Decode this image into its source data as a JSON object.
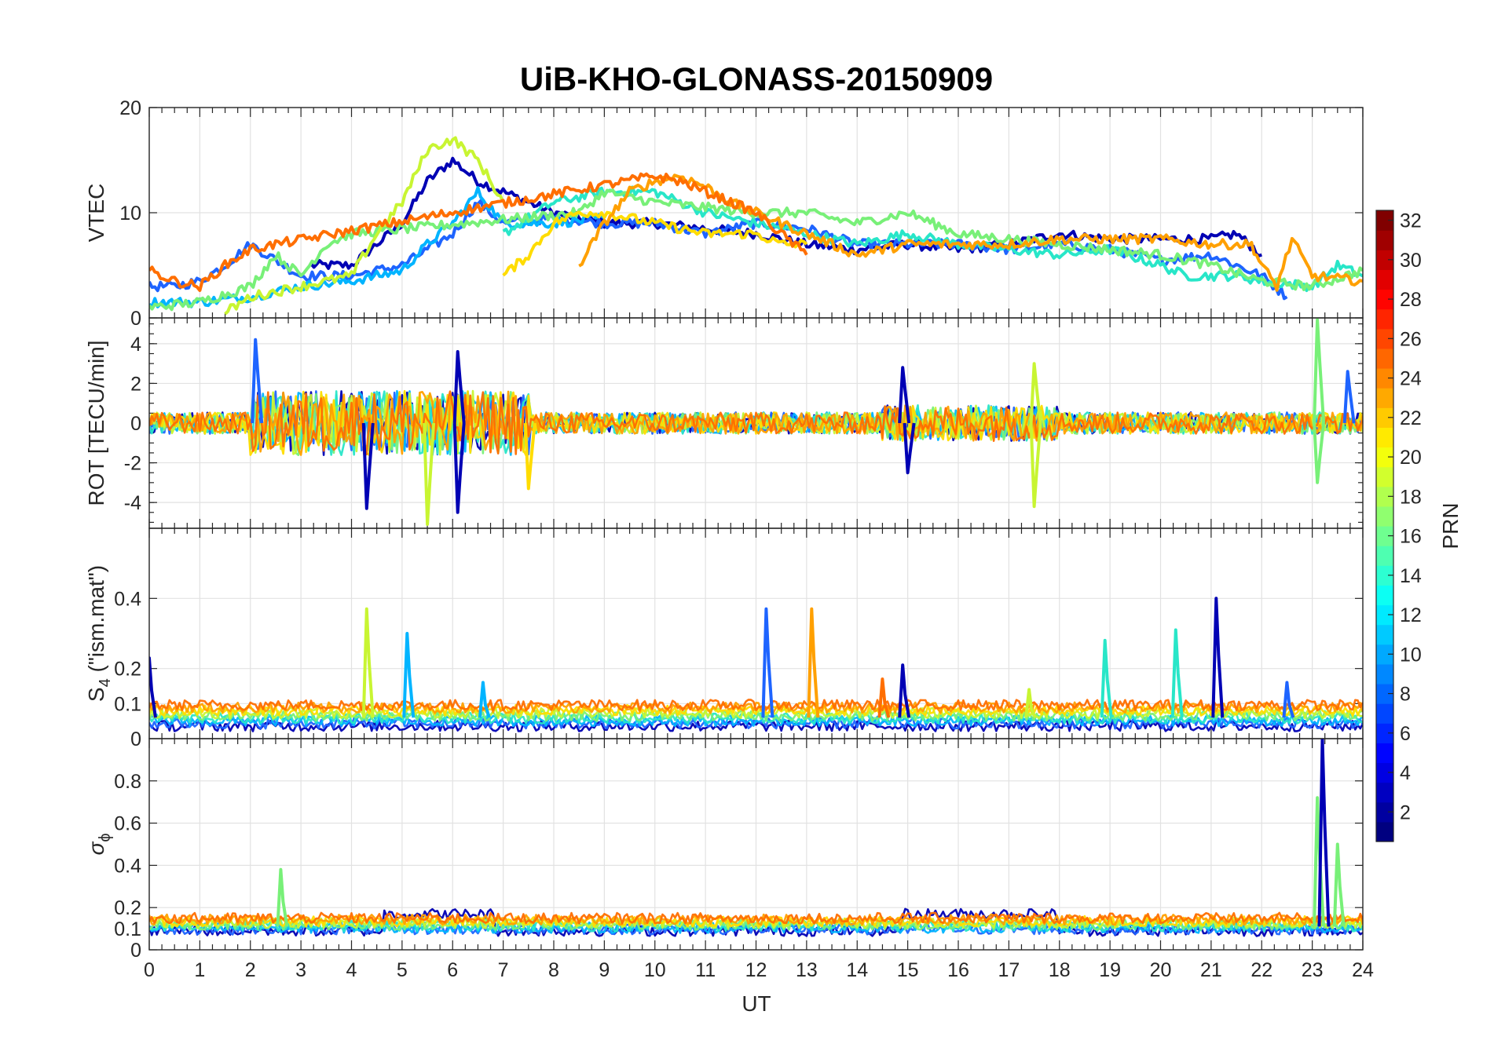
{
  "chart_data": {
    "type": "line",
    "title": "UiB-KHO-GLONASS-20150909",
    "xlabel": "UT",
    "xlim": [
      0,
      24
    ],
    "xticks": [
      "0",
      "1",
      "2",
      "3",
      "4",
      "5",
      "6",
      "7",
      "8",
      "9",
      "10",
      "11",
      "12",
      "13",
      "14",
      "15",
      "16",
      "17",
      "18",
      "19",
      "20",
      "21",
      "22",
      "23",
      "24"
    ],
    "panels": [
      {
        "id": "vtec",
        "ylabel": "VTEC",
        "ylim": [
          0,
          20
        ],
        "yticks": [
          "0",
          "10",
          "20"
        ],
        "series": [
          {
            "name": "PRN 2",
            "color": "#0000b4",
            "x": [
              3.2,
              4.0,
              5.0,
              5.5,
              6.0,
              6.5,
              7.0,
              8.0,
              9.0,
              10.0,
              11.0,
              12.0,
              13.0,
              14.0,
              15.0,
              16.0,
              17.0,
              18.0,
              19.0,
              20.0,
              21.0,
              21.5,
              22.0
            ],
            "y": [
              5,
              5,
              9,
              13,
              15,
              13,
              12,
              10,
              9,
              9,
              8.5,
              8,
              7,
              6.5,
              7,
              6.5,
              7,
              8,
              7.5,
              7.5,
              7.5,
              8,
              6
            ]
          },
          {
            "name": "PRN 6",
            "color": "#1e64ff",
            "x": [
              0,
              0.5,
              1.0,
              1.5,
              2.0,
              2.5,
              3.0,
              4.0,
              5.0,
              6.0,
              6.5,
              7.0,
              8.0,
              9.0,
              10.0,
              11.0,
              12.0,
              13.0,
              14.0,
              15.0,
              16.0,
              17.0,
              18.0,
              19.0,
              20.0,
              21.0,
              22.0,
              22.5
            ],
            "y": [
              3,
              3,
              3.5,
              5,
              7,
              5.5,
              4,
              4,
              5,
              8,
              11,
              9,
              9.5,
              9,
              9,
              8,
              9,
              8.5,
              7,
              7,
              7,
              6.5,
              7,
              6.5,
              5.5,
              6,
              4,
              2
            ],
            "line2": true
          },
          {
            "name": "PRN 10",
            "color": "#00b4ff",
            "x": [
              0,
              1,
              2,
              3,
              4,
              5,
              5.5,
              6.0,
              6.5,
              7.0,
              8.0,
              9.0
            ],
            "y": [
              1.5,
              1.5,
              2,
              3,
              3.5,
              4.5,
              7,
              9,
              12,
              9,
              9,
              9.5
            ]
          },
          {
            "name": "PRN 13",
            "color": "#28e6c8",
            "x": [
              7.0,
              8.0,
              9.0,
              10.0,
              11.0,
              12.0,
              13.0,
              14.0,
              15.0,
              16.0,
              17.0,
              18.0,
              19.0,
              20.0,
              20.5,
              21.5,
              22.0,
              23.0,
              23.5,
              24.0
            ],
            "y": [
              8,
              11,
              12,
              12,
              10,
              9,
              8,
              7,
              8,
              7,
              6.5,
              6,
              6.5,
              5,
              4,
              4,
              3.5,
              3,
              5,
              4
            ]
          },
          {
            "name": "PRN 16",
            "color": "#78f078",
            "x": [
              0,
              1,
              2,
              2.5,
              3.0,
              3.5,
              4.0,
              8.5,
              9.0,
              10.0,
              11.0,
              12.0,
              13.0,
              14.0,
              15.0,
              16.0,
              17.0,
              18.0,
              19.0,
              20.0,
              21.0,
              22.0,
              23.0,
              24.0
            ],
            "y": [
              1,
              1.5,
              3,
              6,
              4,
              7,
              8,
              10,
              12,
              11,
              10.5,
              10,
              10,
              9,
              10,
              8,
              7.5,
              7,
              6.5,
              6,
              5,
              3.5,
              3,
              4.5
            ]
          },
          {
            "name": "PRN 18",
            "color": "#c8f532",
            "x": [
              1.5,
              2.0,
              3.0,
              4.0,
              4.5,
              5.0,
              5.5,
              6.0,
              6.5,
              7.0
            ],
            "y": [
              0.5,
              2,
              3,
              4,
              8,
              11,
              16,
              17,
              15,
              11
            ]
          },
          {
            "name": "PRN 20",
            "color": "#ffdc00",
            "x": [
              7.0,
              7.5,
              8.0,
              8.5,
              9.0,
              10.0,
              11.0,
              12.0,
              12.5,
              13.0
            ],
            "y": [
              4,
              6,
              9,
              10,
              10,
              9,
              8,
              8,
              7,
              7
            ]
          },
          {
            "name": "PRN 23",
            "color": "#ffa000",
            "x": [
              8.5,
              9.0,
              9.5,
              10.0,
              10.5,
              11.0,
              11.5,
              12.0,
              12.5,
              13.0,
              13.5,
              14.0,
              15.0,
              16.0,
              17.0,
              18.0,
              19.0,
              20.0,
              21.0,
              21.8,
              22.0,
              22.3,
              22.6,
              23.0,
              24.0
            ],
            "y": [
              5,
              9,
              12,
              13,
              13.5,
              12.5,
              11,
              10,
              9,
              8,
              7,
              6,
              7,
              7,
              7,
              7.5,
              7.5,
              7.5,
              7,
              7,
              5,
              3,
              7.5,
              4,
              3.5
            ]
          },
          {
            "name": "PRN 24",
            "color": "#ff6e00",
            "x": [
              0,
              0.5,
              1.0,
              1.5,
              2.0,
              2.5,
              10.0,
              10.5,
              11.0,
              11.5,
              12.0,
              12.5,
              13.0
            ],
            "y": [
              4.5,
              3.5,
              3,
              5,
              6.5,
              7,
              13.5,
              13,
              12,
              11,
              10,
              8,
              6
            ]
          }
        ]
      },
      {
        "id": "rot",
        "ylabel": "ROT [TECU/min]",
        "ylim": [
          -5.3,
          5.3
        ],
        "yticks": [
          "-4",
          "-2",
          "0",
          "2",
          "4"
        ],
        "series_note": "noisy rate of TEC for each PRN",
        "spikes": [
          {
            "x": 2.1,
            "y": 4.2,
            "color": "#1e64ff"
          },
          {
            "x": 4.3,
            "y": -4.3,
            "color": "#0000b4"
          },
          {
            "x": 5.5,
            "y": -5.1,
            "color": "#c8f532"
          },
          {
            "x": 6.1,
            "y": -4.5,
            "color": "#0000b4"
          },
          {
            "x": 6.1,
            "y": 3.6,
            "color": "#0000b4"
          },
          {
            "x": 7.5,
            "y": -3.3,
            "color": "#ffdc00"
          },
          {
            "x": 14.9,
            "y": 2.8,
            "color": "#0000b4"
          },
          {
            "x": 15.0,
            "y": -2.5,
            "color": "#0000b4"
          },
          {
            "x": 17.5,
            "y": 3.0,
            "color": "#c8f532"
          },
          {
            "x": 17.5,
            "y": -4.2,
            "color": "#c8f532"
          },
          {
            "x": 23.1,
            "y": 5.2,
            "color": "#78f078"
          },
          {
            "x": 23.1,
            "y": -3.0,
            "color": "#78f078"
          },
          {
            "x": 23.7,
            "y": 2.6,
            "color": "#1e64ff"
          }
        ]
      },
      {
        "id": "s4",
        "ylabel": "S",
        "ylabel_sub": "4",
        "ylabel_rest": " (\"ism.mat\")",
        "ylim": [
          0,
          0.6
        ],
        "yticks": [
          "0.1",
          "0.2",
          "0.4"
        ],
        "spikes": [
          {
            "x": 0.0,
            "y": 0.23,
            "color": "#0000b4"
          },
          {
            "x": 4.3,
            "y": 0.37,
            "color": "#c8f532"
          },
          {
            "x": 5.1,
            "y": 0.3,
            "color": "#00b4ff"
          },
          {
            "x": 6.6,
            "y": 0.16,
            "color": "#00b4ff"
          },
          {
            "x": 12.2,
            "y": 0.37,
            "color": "#1e64ff"
          },
          {
            "x": 13.1,
            "y": 0.37,
            "color": "#ffa000"
          },
          {
            "x": 14.5,
            "y": 0.17,
            "color": "#ff6e00"
          },
          {
            "x": 14.9,
            "y": 0.21,
            "color": "#0000b4"
          },
          {
            "x": 17.4,
            "y": 0.14,
            "color": "#c8f532"
          },
          {
            "x": 18.9,
            "y": 0.28,
            "color": "#28e6c8"
          },
          {
            "x": 20.3,
            "y": 0.31,
            "color": "#28e6c8"
          },
          {
            "x": 21.1,
            "y": 0.4,
            "color": "#0000b4"
          },
          {
            "x": 22.5,
            "y": 0.16,
            "color": "#1e64ff"
          }
        ]
      },
      {
        "id": "sigma",
        "ylabel": "σ",
        "ylabel_sub": "ϕ",
        "ylim": [
          0,
          1
        ],
        "yticks": [
          "0",
          "0.1",
          "0.2",
          "0.4",
          "0.6",
          "0.8"
        ],
        "extra_tick_top": "0",
        "spikes": [
          {
            "x": 2.6,
            "y": 0.38,
            "color": "#78f078"
          },
          {
            "x": 23.1,
            "y": 0.72,
            "color": "#78f078"
          },
          {
            "x": 23.2,
            "y": 1.0,
            "color": "#0000b4"
          },
          {
            "x": 23.5,
            "y": 0.5,
            "color": "#78f078"
          }
        ]
      }
    ],
    "colorbar": {
      "label": "PRN",
      "range": [
        1,
        32
      ],
      "ticks": [
        "2",
        "4",
        "6",
        "8",
        "10",
        "12",
        "14",
        "16",
        "18",
        "20",
        "22",
        "24",
        "26",
        "28",
        "30",
        "32"
      ]
    }
  }
}
